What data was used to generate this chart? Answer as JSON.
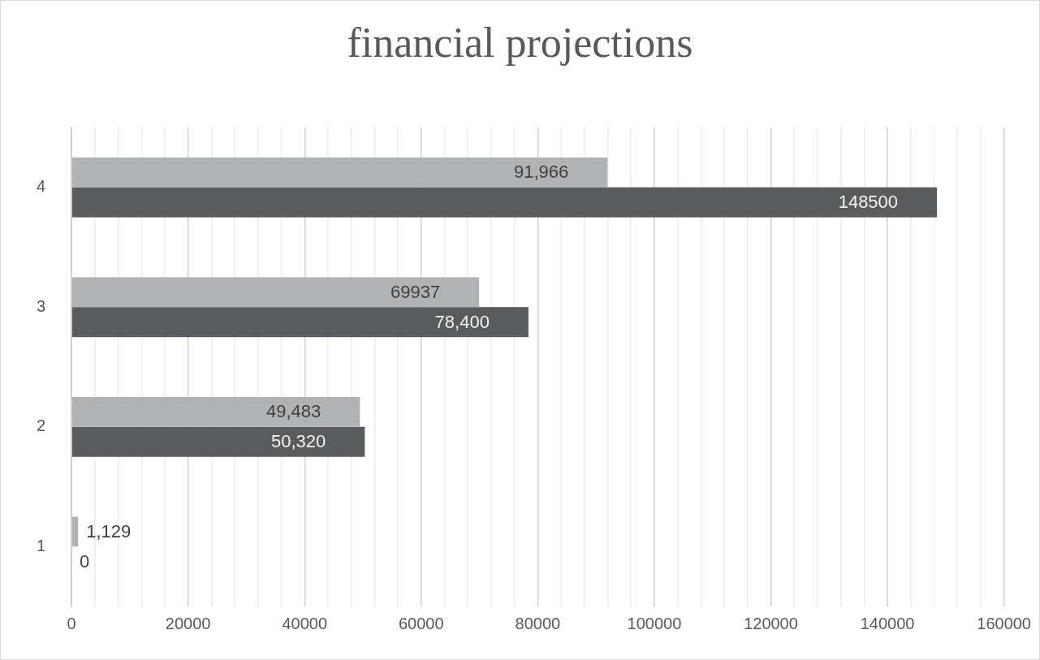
{
  "chart_data": {
    "type": "bar",
    "orientation": "horizontal",
    "title": "financial projections",
    "categories": [
      "4",
      "3",
      "2",
      "1"
    ],
    "series": [
      {
        "color": "#b1b2b4",
        "values": [
          91966,
          69937,
          49483,
          1129
        ],
        "value_labels": [
          "91,966",
          "69937",
          "49,483",
          "1,129"
        ]
      },
      {
        "color": "#5a5b5d",
        "values": [
          148500,
          78400,
          50320,
          0
        ],
        "value_labels": [
          "148500",
          "78,400",
          "50,320",
          "0"
        ]
      }
    ],
    "xlim": [
      0,
      160000
    ],
    "xticks": [
      0,
      {
        "value": 4000,
        "label": null
      },
      {
        "value": 8000,
        "label": null
      },
      {
        "value": 12000,
        "label": null
      },
      {
        "value": 16000,
        "label": null
      },
      20000,
      {
        "value": 24000,
        "label": null
      },
      {
        "value": 28000,
        "label": null
      },
      {
        "value": 32000,
        "label": null
      },
      {
        "value": 36000,
        "label": null
      },
      40000,
      {
        "value": 44000,
        "label": null
      },
      {
        "value": 48000,
        "label": null
      },
      {
        "value": 52000,
        "label": null
      },
      {
        "value": 56000,
        "label": null
      },
      60000,
      {
        "value": 64000,
        "label": null
      },
      {
        "value": 68000,
        "label": null
      },
      {
        "value": 72000,
        "label": null
      },
      {
        "value": 76000,
        "label": null
      },
      80000,
      {
        "value": 84000,
        "label": null
      },
      {
        "value": 88000,
        "label": null
      },
      {
        "value": 92000,
        "label": null
      },
      {
        "value": 96000,
        "label": null
      },
      100000,
      {
        "value": 104000,
        "label": null
      },
      {
        "value": 108000,
        "label": null
      },
      {
        "value": 112000,
        "label": null
      },
      {
        "value": 116000,
        "label": null
      },
      120000,
      {
        "value": 124000,
        "label": null
      },
      {
        "value": 128000,
        "label": null
      },
      {
        "value": 132000,
        "label": null
      },
      {
        "value": 136000,
        "label": null
      },
      140000,
      {
        "value": 144000,
        "label": null
      },
      {
        "value": 148000,
        "label": null
      },
      {
        "value": 152000,
        "label": null
      },
      {
        "value": 156000,
        "label": null
      },
      160000
    ],
    "grid": "x",
    "legend": false
  }
}
